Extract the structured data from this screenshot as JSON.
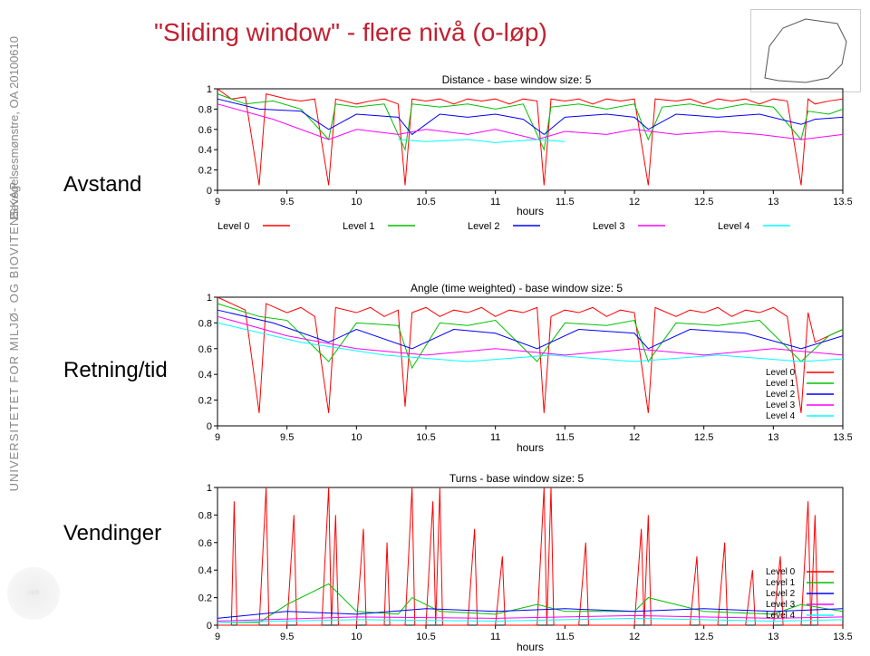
{
  "title": "\"Sliding window\" - flere nivå (o-løp)",
  "side_text_1": "Bevegelsesmønstre, OA 20100610",
  "side_text_2": "UNIVERSITETET FOR MILJØ- OG BIOVITENSKAP",
  "row_labels": {
    "avstand": "Avstand",
    "retning": "Retning/tid",
    "vendinger": "Vendinger"
  },
  "colors": {
    "title": "#c02030",
    "side": "#777777",
    "axis": "#000000",
    "grid": "#999999",
    "series": {
      "level0": "#ff0000",
      "level1": "#00c000",
      "level2": "#0000ff",
      "level3": "#ff00ff",
      "level4": "#00ffff"
    },
    "bg": "#ffffff"
  },
  "x": {
    "min": 9,
    "max": 13.5,
    "step": 0.5,
    "label": "hours",
    "ticks": [
      9,
      9.5,
      10,
      10.5,
      11,
      11.5,
      12,
      12.5,
      13,
      13.5
    ]
  },
  "y": {
    "min": 0,
    "max": 1,
    "step": 0.2,
    "ticks": [
      0,
      0.2,
      0.4,
      0.6,
      0.8,
      1
    ]
  },
  "chart1": {
    "title": "Distance - base window size: 5",
    "legend_below": true,
    "legend": [
      "Level 0",
      "Level 1",
      "Level 2",
      "Level 3",
      "Level 4"
    ],
    "series": {
      "level0": [
        [
          9,
          1
        ],
        [
          9.1,
          0.9
        ],
        [
          9.2,
          0.92
        ],
        [
          9.3,
          0.05
        ],
        [
          9.35,
          0.95
        ],
        [
          9.5,
          0.9
        ],
        [
          9.6,
          0.88
        ],
        [
          9.7,
          0.9
        ],
        [
          9.8,
          0.05
        ],
        [
          9.85,
          0.9
        ],
        [
          10,
          0.85
        ],
        [
          10.1,
          0.88
        ],
        [
          10.2,
          0.9
        ],
        [
          10.3,
          0.85
        ],
        [
          10.35,
          0.05
        ],
        [
          10.4,
          0.9
        ],
        [
          10.5,
          0.88
        ],
        [
          10.6,
          0.9
        ],
        [
          10.7,
          0.85
        ],
        [
          10.8,
          0.9
        ],
        [
          10.9,
          0.88
        ],
        [
          11,
          0.9
        ],
        [
          11.1,
          0.85
        ],
        [
          11.2,
          0.9
        ],
        [
          11.3,
          0.88
        ],
        [
          11.35,
          0.05
        ],
        [
          11.4,
          0.9
        ],
        [
          11.5,
          0.88
        ],
        [
          11.6,
          0.9
        ],
        [
          11.7,
          0.85
        ],
        [
          11.8,
          0.9
        ],
        [
          11.9,
          0.88
        ],
        [
          12,
          0.9
        ],
        [
          12.1,
          0.05
        ],
        [
          12.15,
          0.9
        ],
        [
          12.3,
          0.88
        ],
        [
          12.4,
          0.9
        ],
        [
          12.5,
          0.85
        ],
        [
          12.6,
          0.9
        ],
        [
          12.7,
          0.88
        ],
        [
          12.8,
          0.9
        ],
        [
          12.9,
          0.85
        ],
        [
          13,
          0.9
        ],
        [
          13.1,
          0.88
        ],
        [
          13.2,
          0.05
        ],
        [
          13.25,
          0.9
        ],
        [
          13.3,
          0.85
        ],
        [
          13.4,
          0.88
        ],
        [
          13.5,
          0.9
        ]
      ],
      "level1": [
        [
          9,
          0.95
        ],
        [
          9.2,
          0.85
        ],
        [
          9.4,
          0.88
        ],
        [
          9.6,
          0.8
        ],
        [
          9.8,
          0.5
        ],
        [
          9.85,
          0.85
        ],
        [
          10,
          0.82
        ],
        [
          10.2,
          0.85
        ],
        [
          10.35,
          0.4
        ],
        [
          10.4,
          0.85
        ],
        [
          10.6,
          0.82
        ],
        [
          10.8,
          0.85
        ],
        [
          11,
          0.8
        ],
        [
          11.2,
          0.85
        ],
        [
          11.35,
          0.4
        ],
        [
          11.4,
          0.82
        ],
        [
          11.6,
          0.85
        ],
        [
          11.8,
          0.8
        ],
        [
          12,
          0.85
        ],
        [
          12.1,
          0.5
        ],
        [
          12.2,
          0.82
        ],
        [
          12.4,
          0.85
        ],
        [
          12.6,
          0.8
        ],
        [
          12.8,
          0.85
        ],
        [
          13,
          0.82
        ],
        [
          13.2,
          0.5
        ],
        [
          13.25,
          0.78
        ],
        [
          13.4,
          0.75
        ],
        [
          13.5,
          0.8
        ]
      ],
      "level2": [
        [
          9,
          0.9
        ],
        [
          9.3,
          0.8
        ],
        [
          9.6,
          0.78
        ],
        [
          9.8,
          0.6
        ],
        [
          10,
          0.75
        ],
        [
          10.3,
          0.72
        ],
        [
          10.4,
          0.55
        ],
        [
          10.6,
          0.75
        ],
        [
          10.8,
          0.72
        ],
        [
          11,
          0.75
        ],
        [
          11.2,
          0.7
        ],
        [
          11.35,
          0.55
        ],
        [
          11.5,
          0.72
        ],
        [
          11.8,
          0.75
        ],
        [
          12,
          0.72
        ],
        [
          12.1,
          0.6
        ],
        [
          12.3,
          0.75
        ],
        [
          12.6,
          0.72
        ],
        [
          12.9,
          0.75
        ],
        [
          13.2,
          0.65
        ],
        [
          13.3,
          0.7
        ],
        [
          13.5,
          0.72
        ]
      ],
      "level3": [
        [
          9,
          0.85
        ],
        [
          9.4,
          0.7
        ],
        [
          9.8,
          0.5
        ],
        [
          10,
          0.6
        ],
        [
          10.3,
          0.55
        ],
        [
          10.5,
          0.6
        ],
        [
          10.8,
          0.55
        ],
        [
          11,
          0.6
        ],
        [
          11.3,
          0.5
        ],
        [
          11.5,
          0.58
        ],
        [
          11.8,
          0.55
        ],
        [
          12,
          0.6
        ],
        [
          12.3,
          0.55
        ],
        [
          12.6,
          0.58
        ],
        [
          12.9,
          0.55
        ],
        [
          13.2,
          0.5
        ],
        [
          13.5,
          0.55
        ]
      ],
      "level4": [
        [
          10.3,
          0.5
        ],
        [
          10.5,
          0.48
        ],
        [
          10.8,
          0.5
        ],
        [
          11,
          0.47
        ],
        [
          11.3,
          0.5
        ],
        [
          11.5,
          0.48
        ]
      ]
    }
  },
  "chart2": {
    "title": "Angle (time weighted) - base window size: 5",
    "legend_box": true,
    "legend": [
      "Level 0",
      "Level 1",
      "Level 2",
      "Level 3",
      "Level 4"
    ],
    "series": {
      "level0": [
        [
          9,
          1
        ],
        [
          9.1,
          0.95
        ],
        [
          9.2,
          0.9
        ],
        [
          9.3,
          0.1
        ],
        [
          9.35,
          0.95
        ],
        [
          9.5,
          0.88
        ],
        [
          9.6,
          0.92
        ],
        [
          9.7,
          0.85
        ],
        [
          9.8,
          0.1
        ],
        [
          9.85,
          0.92
        ],
        [
          10,
          0.88
        ],
        [
          10.1,
          0.92
        ],
        [
          10.2,
          0.85
        ],
        [
          10.3,
          0.9
        ],
        [
          10.35,
          0.15
        ],
        [
          10.4,
          0.88
        ],
        [
          10.5,
          0.92
        ],
        [
          10.6,
          0.85
        ],
        [
          10.7,
          0.9
        ],
        [
          10.8,
          0.88
        ],
        [
          10.9,
          0.92
        ],
        [
          11,
          0.85
        ],
        [
          11.1,
          0.9
        ],
        [
          11.2,
          0.88
        ],
        [
          11.3,
          0.92
        ],
        [
          11.35,
          0.1
        ],
        [
          11.4,
          0.85
        ],
        [
          11.5,
          0.9
        ],
        [
          11.6,
          0.88
        ],
        [
          11.7,
          0.92
        ],
        [
          11.8,
          0.85
        ],
        [
          11.9,
          0.9
        ],
        [
          12,
          0.88
        ],
        [
          12.1,
          0.1
        ],
        [
          12.15,
          0.92
        ],
        [
          12.3,
          0.85
        ],
        [
          12.4,
          0.9
        ],
        [
          12.5,
          0.88
        ],
        [
          12.6,
          0.92
        ],
        [
          12.7,
          0.85
        ],
        [
          12.8,
          0.9
        ],
        [
          12.9,
          0.88
        ],
        [
          13,
          0.92
        ],
        [
          13.1,
          0.85
        ],
        [
          13.2,
          0.1
        ],
        [
          13.25,
          0.88
        ],
        [
          13.3,
          0.65
        ],
        [
          13.4,
          0.7
        ],
        [
          13.5,
          0.75
        ]
      ],
      "level1": [
        [
          9,
          0.95
        ],
        [
          9.3,
          0.85
        ],
        [
          9.5,
          0.82
        ],
        [
          9.8,
          0.5
        ],
        [
          10,
          0.8
        ],
        [
          10.3,
          0.78
        ],
        [
          10.4,
          0.45
        ],
        [
          10.6,
          0.8
        ],
        [
          10.8,
          0.78
        ],
        [
          11,
          0.82
        ],
        [
          11.3,
          0.5
        ],
        [
          11.5,
          0.8
        ],
        [
          11.8,
          0.78
        ],
        [
          12,
          0.82
        ],
        [
          12.1,
          0.5
        ],
        [
          12.3,
          0.8
        ],
        [
          12.6,
          0.78
        ],
        [
          12.9,
          0.82
        ],
        [
          13.2,
          0.5
        ],
        [
          13.4,
          0.7
        ],
        [
          13.5,
          0.75
        ]
      ],
      "level2": [
        [
          9,
          0.9
        ],
        [
          9.4,
          0.8
        ],
        [
          9.8,
          0.65
        ],
        [
          10,
          0.75
        ],
        [
          10.4,
          0.6
        ],
        [
          10.7,
          0.75
        ],
        [
          11,
          0.72
        ],
        [
          11.3,
          0.6
        ],
        [
          11.6,
          0.75
        ],
        [
          12,
          0.72
        ],
        [
          12.1,
          0.6
        ],
        [
          12.4,
          0.75
        ],
        [
          12.8,
          0.72
        ],
        [
          13.2,
          0.6
        ],
        [
          13.5,
          0.7
        ]
      ],
      "level3": [
        [
          9,
          0.85
        ],
        [
          9.5,
          0.7
        ],
        [
          10,
          0.6
        ],
        [
          10.5,
          0.55
        ],
        [
          11,
          0.6
        ],
        [
          11.5,
          0.55
        ],
        [
          12,
          0.6
        ],
        [
          12.5,
          0.55
        ],
        [
          13,
          0.6
        ],
        [
          13.5,
          0.55
        ]
      ],
      "level4": [
        [
          9,
          0.8
        ],
        [
          9.6,
          0.65
        ],
        [
          10.2,
          0.55
        ],
        [
          10.8,
          0.5
        ],
        [
          11.4,
          0.55
        ],
        [
          12,
          0.5
        ],
        [
          12.6,
          0.55
        ],
        [
          13.2,
          0.5
        ],
        [
          13.5,
          0.52
        ]
      ]
    }
  },
  "chart3": {
    "title": "Turns - base window size: 5",
    "legend_box": true,
    "legend": [
      "Level 0",
      "Level 1",
      "Level 2",
      "Level 3",
      "Level 4"
    ],
    "series": {
      "level0": [
        [
          9,
          0
        ],
        [
          9.1,
          0
        ],
        [
          9.12,
          0.9
        ],
        [
          9.14,
          0
        ],
        [
          9.3,
          0
        ],
        [
          9.35,
          1
        ],
        [
          9.37,
          0
        ],
        [
          9.5,
          0
        ],
        [
          9.55,
          0.8
        ],
        [
          9.57,
          0
        ],
        [
          9.75,
          0
        ],
        [
          9.8,
          1
        ],
        [
          9.82,
          0
        ],
        [
          9.85,
          0.8
        ],
        [
          9.87,
          0
        ],
        [
          10,
          0
        ],
        [
          10.05,
          0.7
        ],
        [
          10.07,
          0
        ],
        [
          10.2,
          0
        ],
        [
          10.22,
          0.6
        ],
        [
          10.24,
          0
        ],
        [
          10.35,
          0
        ],
        [
          10.4,
          1
        ],
        [
          10.42,
          0
        ],
        [
          10.5,
          0
        ],
        [
          10.55,
          0.9
        ],
        [
          10.57,
          0
        ],
        [
          10.6,
          1
        ],
        [
          10.62,
          0
        ],
        [
          10.8,
          0
        ],
        [
          10.85,
          0.7
        ],
        [
          10.87,
          0
        ],
        [
          11,
          0
        ],
        [
          11.05,
          0.5
        ],
        [
          11.07,
          0
        ],
        [
          11.2,
          0
        ],
        [
          11.3,
          0
        ],
        [
          11.35,
          1
        ],
        [
          11.37,
          0
        ],
        [
          11.4,
          1
        ],
        [
          11.42,
          0
        ],
        [
          11.6,
          0
        ],
        [
          11.65,
          0.6
        ],
        [
          11.67,
          0
        ],
        [
          11.8,
          0
        ],
        [
          12,
          0
        ],
        [
          12.05,
          0.7
        ],
        [
          12.07,
          0
        ],
        [
          12.1,
          0.8
        ],
        [
          12.12,
          0
        ],
        [
          12.3,
          0
        ],
        [
          12.4,
          0
        ],
        [
          12.45,
          0.5
        ],
        [
          12.47,
          0
        ],
        [
          12.6,
          0
        ],
        [
          12.65,
          0.6
        ],
        [
          12.67,
          0
        ],
        [
          12.8,
          0
        ],
        [
          12.85,
          0.4
        ],
        [
          12.87,
          0
        ],
        [
          13,
          0
        ],
        [
          13.05,
          0.5
        ],
        [
          13.07,
          0
        ],
        [
          13.2,
          0
        ],
        [
          13.25,
          0.9
        ],
        [
          13.27,
          0
        ],
        [
          13.3,
          0.8
        ],
        [
          13.32,
          0
        ],
        [
          13.5,
          0
        ]
      ],
      "level1": [
        [
          9,
          0.02
        ],
        [
          9.3,
          0.02
        ],
        [
          9.5,
          0.15
        ],
        [
          9.8,
          0.3
        ],
        [
          10,
          0.1
        ],
        [
          10.3,
          0.08
        ],
        [
          10.4,
          0.2
        ],
        [
          10.6,
          0.1
        ],
        [
          11,
          0.08
        ],
        [
          11.3,
          0.15
        ],
        [
          11.5,
          0.1
        ],
        [
          12,
          0.1
        ],
        [
          12.1,
          0.2
        ],
        [
          12.5,
          0.1
        ],
        [
          13,
          0.08
        ],
        [
          13.2,
          0.15
        ],
        [
          13.5,
          0.1
        ]
      ],
      "level2": [
        [
          9,
          0.05
        ],
        [
          9.5,
          0.1
        ],
        [
          10,
          0.08
        ],
        [
          10.5,
          0.12
        ],
        [
          11,
          0.1
        ],
        [
          11.5,
          0.12
        ],
        [
          12,
          0.1
        ],
        [
          12.5,
          0.12
        ],
        [
          13,
          0.1
        ],
        [
          13.5,
          0.12
        ]
      ],
      "level3": [
        [
          9,
          0.03
        ],
        [
          10,
          0.06
        ],
        [
          11,
          0.05
        ],
        [
          12,
          0.07
        ],
        [
          13,
          0.05
        ],
        [
          13.5,
          0.06
        ]
      ],
      "level4": [
        [
          9,
          0.02
        ],
        [
          10,
          0.04
        ],
        [
          11,
          0.03
        ],
        [
          12,
          0.05
        ],
        [
          13,
          0.03
        ],
        [
          13.5,
          0.04
        ]
      ]
    }
  }
}
